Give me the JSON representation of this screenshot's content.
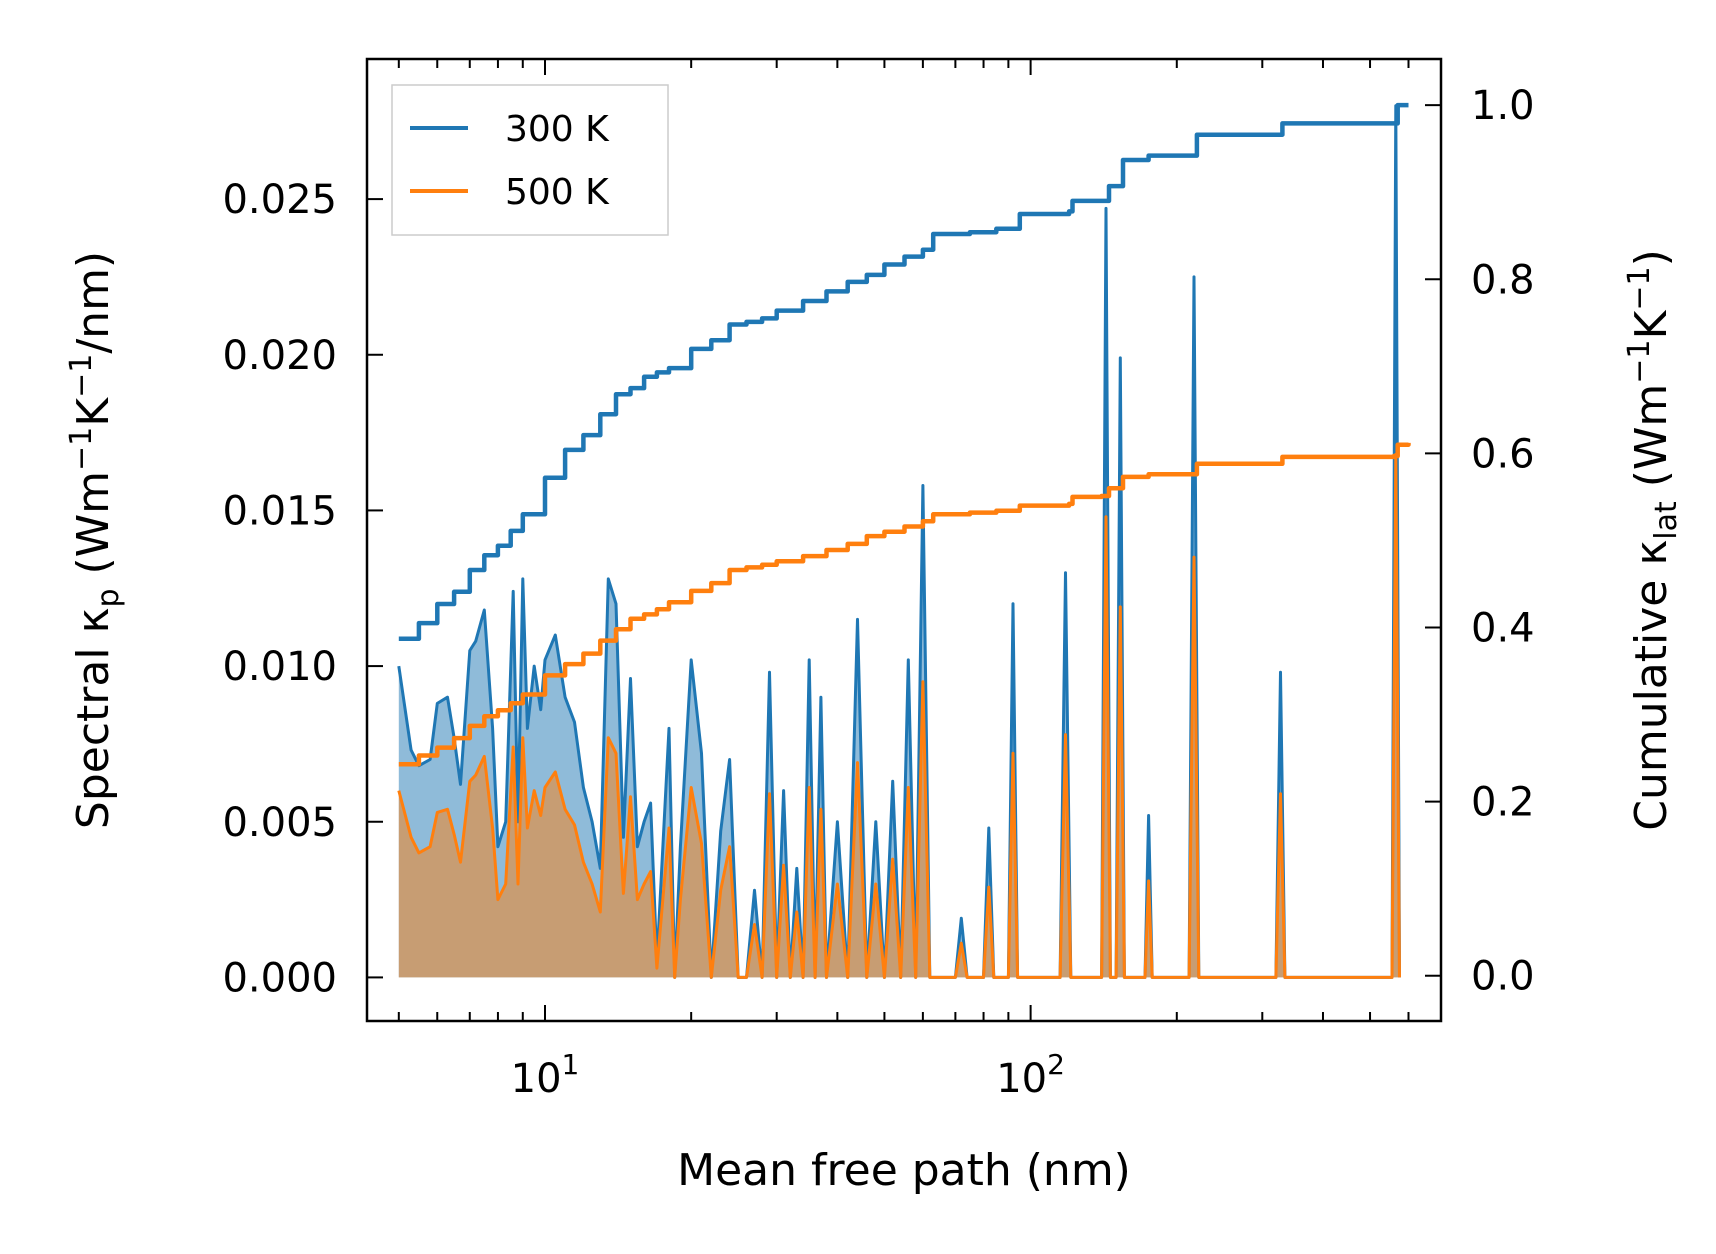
{
  "chart_data": {
    "type": "line",
    "xscale": "log",
    "xlim": [
      4.3,
      700
    ],
    "ylim_left": [
      -0.0014,
      0.0295
    ],
    "ylim_right": [
      -0.052,
      1.053
    ],
    "xlabel": "Mean free path (nm)",
    "ylabel_left": {
      "base": "Spectral κ",
      "sub": "p",
      "units_open": " (Wm",
      "exp1": "−1",
      "mid": "K",
      "exp2": "−1",
      "units_close": "/nm)"
    },
    "ylabel_right": {
      "base": "Cumulative κ",
      "sub": "lat",
      "units_open": " (Wm",
      "exp1": "−1",
      "mid": "K",
      "exp2": "−1",
      "units_close": ")"
    },
    "x_major_ticks": [
      {
        "value": 10,
        "base": "10",
        "exp": "1"
      },
      {
        "value": 100,
        "base": "10",
        "exp": "2"
      }
    ],
    "y_left_ticks": [
      {
        "value": 0.0,
        "label": "0.000"
      },
      {
        "value": 0.005,
        "label": "0.005"
      },
      {
        "value": 0.01,
        "label": "0.010"
      },
      {
        "value": 0.015,
        "label": "0.015"
      },
      {
        "value": 0.02,
        "label": "0.020"
      },
      {
        "value": 0.025,
        "label": "0.025"
      }
    ],
    "y_right_ticks": [
      {
        "value": 0.0,
        "label": "0.0"
      },
      {
        "value": 0.2,
        "label": "0.2"
      },
      {
        "value": 0.4,
        "label": "0.4"
      },
      {
        "value": 0.6,
        "label": "0.6"
      },
      {
        "value": 0.8,
        "label": "0.8"
      },
      {
        "value": 1.0,
        "label": "1.0"
      }
    ],
    "legend": {
      "position": "top-left",
      "entries": [
        "300 K",
        "500 K"
      ]
    },
    "series": [
      {
        "name": "300 K",
        "color": "#1f77b4",
        "cumulative": [
          [
            5.0,
            0.387
          ],
          [
            5.5,
            0.405
          ],
          [
            6.0,
            0.427
          ],
          [
            6.5,
            0.441
          ],
          [
            7.0,
            0.466
          ],
          [
            7.5,
            0.483
          ],
          [
            8.0,
            0.494
          ],
          [
            8.5,
            0.511
          ],
          [
            9.0,
            0.53
          ],
          [
            10.0,
            0.572
          ],
          [
            11.0,
            0.604
          ],
          [
            12.0,
            0.621
          ],
          [
            13.0,
            0.645
          ],
          [
            14.0,
            0.668
          ],
          [
            15.0,
            0.675
          ],
          [
            16.0,
            0.688
          ],
          [
            17.0,
            0.693
          ],
          [
            18.0,
            0.698
          ],
          [
            20.0,
            0.72
          ],
          [
            22.0,
            0.73
          ],
          [
            24.0,
            0.748
          ],
          [
            26.0,
            0.751
          ],
          [
            28.0,
            0.755
          ],
          [
            30.0,
            0.764
          ],
          [
            34.0,
            0.775
          ],
          [
            38.0,
            0.786
          ],
          [
            42.0,
            0.797
          ],
          [
            46.0,
            0.805
          ],
          [
            50.0,
            0.817
          ],
          [
            55.0,
            0.826
          ],
          [
            60.0,
            0.834
          ],
          [
            63.0,
            0.852
          ],
          [
            75.0,
            0.854
          ],
          [
            85.0,
            0.858
          ],
          [
            95.0,
            0.875
          ],
          [
            120.0,
            0.878
          ],
          [
            122.0,
            0.89
          ],
          [
            140.0,
            0.89
          ],
          [
            145.0,
            0.907
          ],
          [
            155.0,
            0.937
          ],
          [
            175.0,
            0.942
          ],
          [
            220.0,
            0.966
          ],
          [
            330.0,
            0.979
          ],
          [
            560.0,
            0.979
          ],
          [
            570.0,
            1.0
          ],
          [
            600.0,
            1.0
          ]
        ],
        "spectral": [
          [
            5.0,
            0.01
          ],
          [
            5.3,
            0.0073
          ],
          [
            5.5,
            0.0068
          ],
          [
            5.8,
            0.007
          ],
          [
            6.0,
            0.0088
          ],
          [
            6.3,
            0.009
          ],
          [
            6.5,
            0.0077
          ],
          [
            6.7,
            0.0062
          ],
          [
            7.0,
            0.0105
          ],
          [
            7.2,
            0.0108
          ],
          [
            7.5,
            0.0118
          ],
          [
            7.8,
            0.008
          ],
          [
            8.0,
            0.0042
          ],
          [
            8.3,
            0.005
          ],
          [
            8.6,
            0.0124
          ],
          [
            8.8,
            0.005
          ],
          [
            9.0,
            0.0128
          ],
          [
            9.2,
            0.008
          ],
          [
            9.5,
            0.01
          ],
          [
            9.8,
            0.0086
          ],
          [
            10.0,
            0.0102
          ],
          [
            10.5,
            0.011
          ],
          [
            11.0,
            0.009
          ],
          [
            11.5,
            0.0082
          ],
          [
            12.0,
            0.0061
          ],
          [
            12.5,
            0.005
          ],
          [
            13.0,
            0.0035
          ],
          [
            13.5,
            0.0128
          ],
          [
            14.0,
            0.012
          ],
          [
            14.5,
            0.0045
          ],
          [
            15.0,
            0.0096
          ],
          [
            15.5,
            0.0042
          ],
          [
            16.0,
            0.005
          ],
          [
            16.5,
            0.0056
          ],
          [
            17.0,
            0.0005
          ],
          [
            18.0,
            0.008
          ],
          [
            18.5,
            0.0
          ],
          [
            19.0,
            0.0042
          ],
          [
            20.0,
            0.0102
          ],
          [
            21.0,
            0.0072
          ],
          [
            22.0,
            0.0
          ],
          [
            23.0,
            0.0047
          ],
          [
            24.0,
            0.007
          ],
          [
            25.0,
            0.0
          ],
          [
            26.0,
            0.0
          ],
          [
            27.0,
            0.0028
          ],
          [
            28.0,
            0.0
          ],
          [
            29.0,
            0.0098
          ],
          [
            30.0,
            0.0
          ],
          [
            31.0,
            0.006
          ],
          [
            32.0,
            0.0
          ],
          [
            33.0,
            0.0035
          ],
          [
            34.0,
            0.0
          ],
          [
            35.0,
            0.0102
          ],
          [
            36.0,
            0.0
          ],
          [
            37.0,
            0.009
          ],
          [
            38.0,
            0.0
          ],
          [
            40.0,
            0.005
          ],
          [
            42.0,
            0.0
          ],
          [
            44.0,
            0.0115
          ],
          [
            46.0,
            0.0
          ],
          [
            48.0,
            0.005
          ],
          [
            50.0,
            0.0
          ],
          [
            52.0,
            0.0063
          ],
          [
            54.0,
            0.0
          ],
          [
            56.0,
            0.0102
          ],
          [
            58.0,
            0.0
          ],
          [
            60.0,
            0.0158
          ],
          [
            62.0,
            0.0
          ],
          [
            70.0,
            0.0
          ],
          [
            72.0,
            0.0019
          ],
          [
            74.0,
            0.0
          ],
          [
            80.0,
            0.0
          ],
          [
            82.0,
            0.0048
          ],
          [
            84.0,
            0.0
          ],
          [
            90.0,
            0.0
          ],
          [
            92.0,
            0.012
          ],
          [
            94.0,
            0.0
          ],
          [
            115.0,
            0.0
          ],
          [
            118.0,
            0.013
          ],
          [
            121.0,
            0.0
          ],
          [
            140.0,
            0.0
          ],
          [
            143.0,
            0.0247
          ],
          [
            146.0,
            0.0
          ],
          [
            150.0,
            0.0
          ],
          [
            153.0,
            0.0199
          ],
          [
            156.0,
            0.0
          ],
          [
            172.0,
            0.0
          ],
          [
            175.0,
            0.0052
          ],
          [
            178.0,
            0.0
          ],
          [
            212.0,
            0.0
          ],
          [
            217.0,
            0.0225
          ],
          [
            222.0,
            0.0
          ],
          [
            320.0,
            0.0
          ],
          [
            327.0,
            0.0098
          ],
          [
            334.0,
            0.0
          ],
          [
            555.0,
            0.0
          ],
          [
            565.0,
            0.028
          ],
          [
            575.0,
            0.0
          ]
        ]
      },
      {
        "name": "500 K",
        "color": "#ff7f0e",
        "cumulative": [
          [
            5.0,
            0.243
          ],
          [
            5.5,
            0.253
          ],
          [
            6.0,
            0.262
          ],
          [
            6.5,
            0.273
          ],
          [
            7.0,
            0.287
          ],
          [
            7.5,
            0.298
          ],
          [
            8.0,
            0.305
          ],
          [
            8.5,
            0.313
          ],
          [
            9.0,
            0.323
          ],
          [
            10.0,
            0.345
          ],
          [
            11.0,
            0.358
          ],
          [
            12.0,
            0.37
          ],
          [
            13.0,
            0.385
          ],
          [
            14.0,
            0.398
          ],
          [
            15.0,
            0.41
          ],
          [
            16.0,
            0.415
          ],
          [
            17.0,
            0.421
          ],
          [
            18.0,
            0.429
          ],
          [
            20.0,
            0.442
          ],
          [
            22.0,
            0.451
          ],
          [
            24.0,
            0.466
          ],
          [
            26.0,
            0.469
          ],
          [
            28.0,
            0.472
          ],
          [
            30.0,
            0.476
          ],
          [
            34.0,
            0.482
          ],
          [
            38.0,
            0.489
          ],
          [
            42.0,
            0.496
          ],
          [
            46.0,
            0.505
          ],
          [
            50.0,
            0.51
          ],
          [
            55.0,
            0.516
          ],
          [
            60.0,
            0.522
          ],
          [
            63.0,
            0.53
          ],
          [
            75.0,
            0.532
          ],
          [
            85.0,
            0.534
          ],
          [
            95.0,
            0.54
          ],
          [
            120.0,
            0.542
          ],
          [
            122.0,
            0.55
          ],
          [
            140.0,
            0.551
          ],
          [
            145.0,
            0.56
          ],
          [
            155.0,
            0.573
          ],
          [
            175.0,
            0.576
          ],
          [
            220.0,
            0.588
          ],
          [
            330.0,
            0.596
          ],
          [
            560.0,
            0.597
          ],
          [
            570.0,
            0.61
          ],
          [
            600.0,
            0.612
          ]
        ],
        "spectral": [
          [
            5.0,
            0.006
          ],
          [
            5.3,
            0.0045
          ],
          [
            5.5,
            0.004
          ],
          [
            5.8,
            0.0042
          ],
          [
            6.0,
            0.0053
          ],
          [
            6.3,
            0.0054
          ],
          [
            6.5,
            0.0046
          ],
          [
            6.7,
            0.0037
          ],
          [
            7.0,
            0.0063
          ],
          [
            7.2,
            0.0065
          ],
          [
            7.5,
            0.0071
          ],
          [
            7.8,
            0.0048
          ],
          [
            8.0,
            0.0025
          ],
          [
            8.3,
            0.003
          ],
          [
            8.6,
            0.0074
          ],
          [
            8.8,
            0.003
          ],
          [
            9.0,
            0.0077
          ],
          [
            9.2,
            0.0048
          ],
          [
            9.5,
            0.006
          ],
          [
            9.8,
            0.0052
          ],
          [
            10.0,
            0.0061
          ],
          [
            10.5,
            0.0066
          ],
          [
            11.0,
            0.0054
          ],
          [
            11.5,
            0.0049
          ],
          [
            12.0,
            0.0037
          ],
          [
            12.5,
            0.003
          ],
          [
            13.0,
            0.0021
          ],
          [
            13.5,
            0.0077
          ],
          [
            14.0,
            0.0072
          ],
          [
            14.5,
            0.0027
          ],
          [
            15.0,
            0.0058
          ],
          [
            15.5,
            0.0025
          ],
          [
            16.0,
            0.003
          ],
          [
            16.5,
            0.0034
          ],
          [
            17.0,
            0.0003
          ],
          [
            18.0,
            0.0048
          ],
          [
            18.5,
            0.0
          ],
          [
            19.0,
            0.0025
          ],
          [
            20.0,
            0.0061
          ],
          [
            21.0,
            0.0043
          ],
          [
            22.0,
            0.0
          ],
          [
            23.0,
            0.0028
          ],
          [
            24.0,
            0.0042
          ],
          [
            25.0,
            0.0
          ],
          [
            26.0,
            0.0
          ],
          [
            27.0,
            0.0017
          ],
          [
            28.0,
            0.0
          ],
          [
            29.0,
            0.0059
          ],
          [
            30.0,
            0.0
          ],
          [
            31.0,
            0.0036
          ],
          [
            32.0,
            0.0
          ],
          [
            33.0,
            0.0021
          ],
          [
            34.0,
            0.0
          ],
          [
            35.0,
            0.0061
          ],
          [
            36.0,
            0.0
          ],
          [
            37.0,
            0.0054
          ],
          [
            38.0,
            0.0
          ],
          [
            40.0,
            0.003
          ],
          [
            42.0,
            0.0
          ],
          [
            44.0,
            0.0069
          ],
          [
            46.0,
            0.0
          ],
          [
            48.0,
            0.003
          ],
          [
            50.0,
            0.0
          ],
          [
            52.0,
            0.0038
          ],
          [
            54.0,
            0.0
          ],
          [
            56.0,
            0.0061
          ],
          [
            58.0,
            0.0
          ],
          [
            60.0,
            0.0095
          ],
          [
            62.0,
            0.0
          ],
          [
            70.0,
            0.0
          ],
          [
            72.0,
            0.0011
          ],
          [
            74.0,
            0.0
          ],
          [
            80.0,
            0.0
          ],
          [
            82.0,
            0.0029
          ],
          [
            84.0,
            0.0
          ],
          [
            90.0,
            0.0
          ],
          [
            92.0,
            0.0072
          ],
          [
            94.0,
            0.0
          ],
          [
            115.0,
            0.0
          ],
          [
            118.0,
            0.0078
          ],
          [
            121.0,
            0.0
          ],
          [
            140.0,
            0.0
          ],
          [
            143.0,
            0.0148
          ],
          [
            146.0,
            0.0
          ],
          [
            150.0,
            0.0
          ],
          [
            153.0,
            0.0119
          ],
          [
            156.0,
            0.0
          ],
          [
            172.0,
            0.0
          ],
          [
            175.0,
            0.0031
          ],
          [
            178.0,
            0.0
          ],
          [
            212.0,
            0.0
          ],
          [
            217.0,
            0.0135
          ],
          [
            222.0,
            0.0
          ],
          [
            320.0,
            0.0
          ],
          [
            327.0,
            0.0059
          ],
          [
            334.0,
            0.0
          ],
          [
            555.0,
            0.0
          ],
          [
            565.0,
            0.0168
          ],
          [
            575.0,
            0.0
          ]
        ]
      }
    ]
  }
}
